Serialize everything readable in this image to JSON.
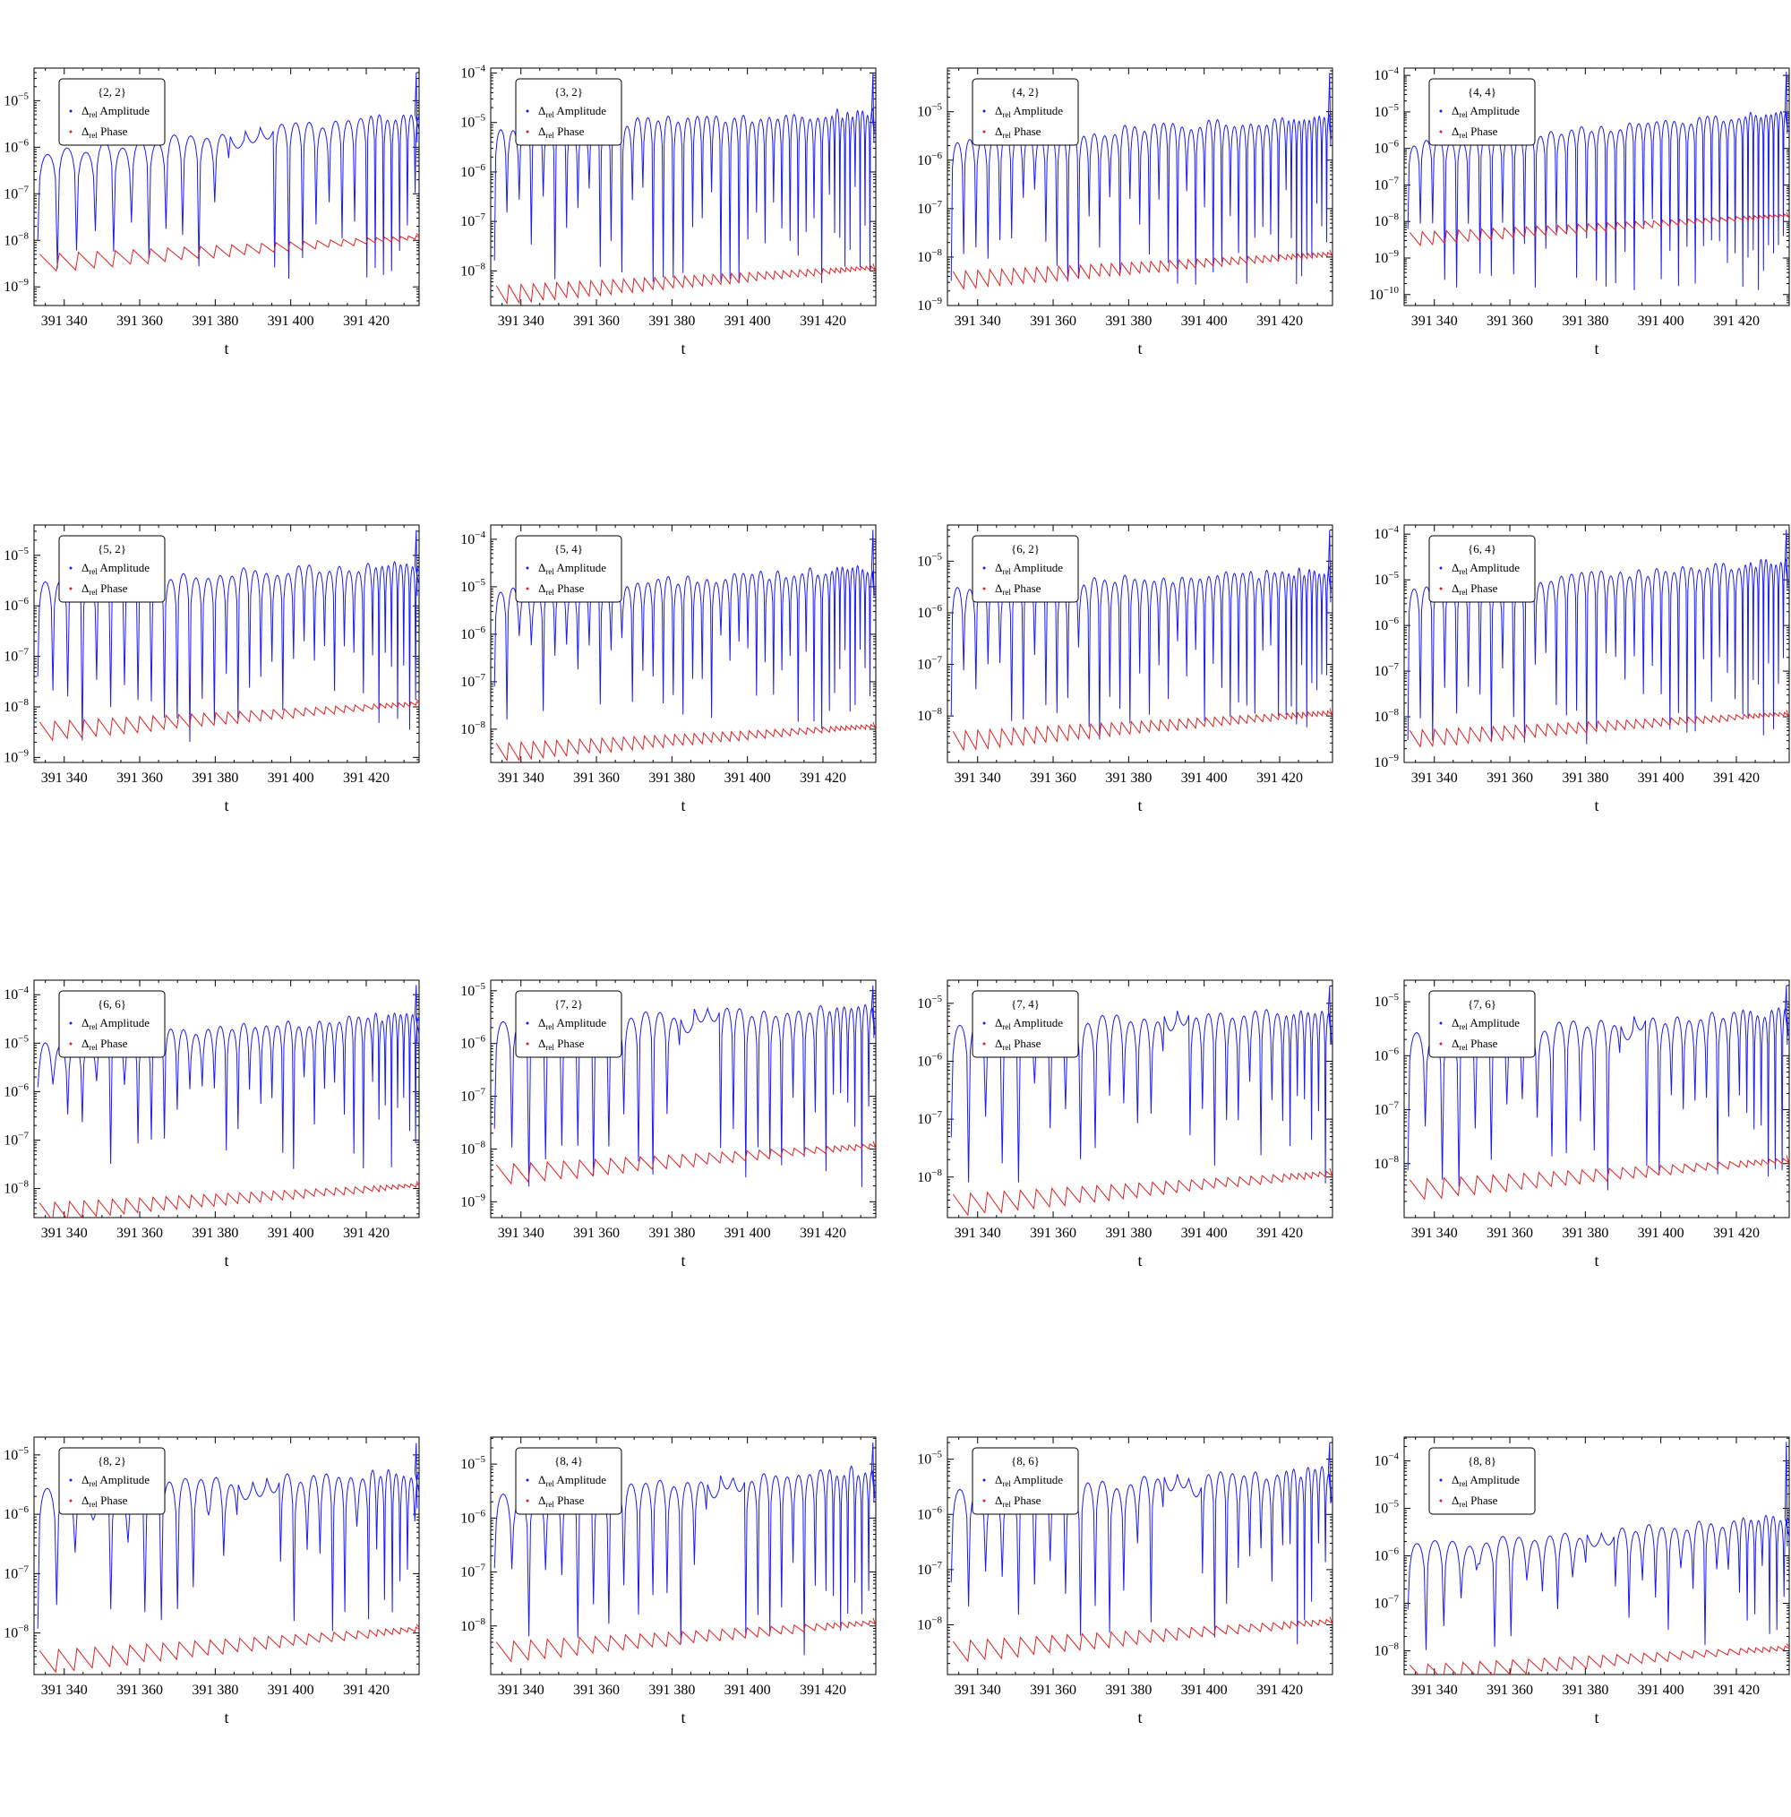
{
  "colors": {
    "amplitude": "#1a1aff",
    "phase": "#e02020",
    "axes": "#000000"
  },
  "shared": {
    "xlabel": "t",
    "x_ticks": [
      391340,
      391360,
      391380,
      391400,
      391420
    ],
    "x_tick_labels": [
      "391 340",
      "391 360",
      "391 380",
      "391 400",
      "391 420"
    ],
    "xlim": [
      391332,
      391434
    ],
    "y_scale": "log",
    "legend_position": "top-left",
    "legend_entries": [
      {
        "symbol": "Δ",
        "sub": "rel",
        "label": " Amplitude",
        "series": "amplitude"
      },
      {
        "symbol": "Δ",
        "sub": "rel",
        "label": " Phase",
        "series": "phase"
      }
    ]
  },
  "chart_data": [
    {
      "type": "line",
      "title": "{2, 2}",
      "ylim_exp": [
        -9.4,
        -4.3
      ],
      "y_tick_exps": [
        -9,
        -8,
        -7,
        -6,
        -5
      ],
      "y_tick_labels": [
        "10^-9",
        "10^-8",
        "10^-7",
        "10^-6",
        "10^-5"
      ],
      "amp_peak_start_exp": -6.1,
      "amp_peak_end_exp": -5.3,
      "amp_spike_exp": -4.4,
      "phase_start_exp": -8.3,
      "phase_end_exp": -7.9,
      "dip_floor_exp": -9.2,
      "gap_range": [
        391380,
        391393
      ],
      "period": 5.2,
      "series": [
        {
          "name": "Δrel Amplitude",
          "key": "amplitude"
        },
        {
          "name": "Δrel Phase",
          "key": "phase"
        }
      ]
    },
    {
      "type": "line",
      "title": "{3, 2}",
      "ylim_exp": [
        -8.7,
        -3.9
      ],
      "y_tick_exps": [
        -8,
        -7,
        -6,
        -5,
        -4
      ],
      "y_tick_labels": [
        "10^-8",
        "10^-7",
        "10^-6",
        "10^-5",
        "10^-4"
      ],
      "amp_peak_start_exp": -5.1,
      "amp_peak_end_exp": -4.8,
      "amp_spike_exp": -4.0,
      "phase_start_exp": -8.3,
      "phase_end_exp": -7.9,
      "dip_floor_exp": -8.6,
      "gap_range": null,
      "period": 3.3,
      "series": [
        {
          "name": "Δrel Amplitude",
          "key": "amplitude"
        },
        {
          "name": "Δrel Phase",
          "key": "phase"
        }
      ]
    },
    {
      "type": "line",
      "title": "{4, 2}",
      "ylim_exp": [
        -9.0,
        -4.1
      ],
      "y_tick_exps": [
        -9,
        -8,
        -7,
        -6,
        -5
      ],
      "y_tick_labels": [
        "10^-9",
        "10^-8",
        "10^-7",
        "10^-6",
        "10^-5"
      ],
      "amp_peak_start_exp": -5.6,
      "amp_peak_end_exp": -5.1,
      "amp_spike_exp": -4.2,
      "phase_start_exp": -8.3,
      "phase_end_exp": -7.9,
      "dip_floor_exp": -8.9,
      "gap_range": null,
      "period": 3.3,
      "series": [
        {
          "name": "Δrel Amplitude",
          "key": "amplitude"
        },
        {
          "name": "Δrel Phase",
          "key": "phase"
        }
      ]
    },
    {
      "type": "line",
      "title": "{4, 4}",
      "ylim_exp": [
        -10.3,
        -3.8
      ],
      "y_tick_exps": [
        -10,
        -9,
        -8,
        -7,
        -6,
        -5,
        -4
      ],
      "y_tick_labels": [
        "10^-10",
        "10^-9",
        "10^-8",
        "10^-7",
        "10^-6",
        "10^-5",
        "10^-4"
      ],
      "amp_peak_start_exp": -5.9,
      "amp_peak_end_exp": -5.0,
      "amp_spike_exp": -3.9,
      "phase_start_exp": -8.3,
      "phase_end_exp": -7.8,
      "dip_floor_exp": -10.2,
      "gap_range": null,
      "period": 3.3,
      "series": [
        {
          "name": "Δrel Amplitude",
          "key": "amplitude"
        },
        {
          "name": "Δrel Phase",
          "key": "phase"
        }
      ]
    },
    {
      "type": "line",
      "title": "{5, 2}",
      "ylim_exp": [
        -9.1,
        -4.4
      ],
      "y_tick_exps": [
        -9,
        -8,
        -7,
        -6,
        -5
      ],
      "y_tick_labels": [
        "10^-9",
        "10^-8",
        "10^-7",
        "10^-6",
        "10^-5"
      ],
      "amp_peak_start_exp": -5.5,
      "amp_peak_end_exp": -5.2,
      "amp_spike_exp": -4.5,
      "phase_start_exp": -8.3,
      "phase_end_exp": -7.9,
      "dip_floor_exp": -9.0,
      "gap_range": null,
      "period": 4.0,
      "series": [
        {
          "name": "Δrel Amplitude",
          "key": "amplitude"
        },
        {
          "name": "Δrel Phase",
          "key": "phase"
        }
      ]
    },
    {
      "type": "line",
      "title": "{5, 4}",
      "ylim_exp": [
        -8.7,
        -3.7
      ],
      "y_tick_exps": [
        -8,
        -7,
        -6,
        -5,
        -4
      ],
      "y_tick_labels": [
        "10^-8",
        "10^-7",
        "10^-6",
        "10^-5",
        "10^-4"
      ],
      "amp_peak_start_exp": -5.1,
      "amp_peak_end_exp": -4.6,
      "amp_spike_exp": -3.8,
      "phase_start_exp": -8.3,
      "phase_end_exp": -7.9,
      "dip_floor_exp": -8.3,
      "gap_range": null,
      "period": 3.3,
      "series": [
        {
          "name": "Δrel Amplitude",
          "key": "amplitude"
        },
        {
          "name": "Δrel Phase",
          "key": "phase"
        }
      ]
    },
    {
      "type": "line",
      "title": "{6, 2}",
      "ylim_exp": [
        -8.9,
        -4.3
      ],
      "y_tick_exps": [
        -8,
        -7,
        -6,
        -5
      ],
      "y_tick_labels": [
        "10^-8",
        "10^-7",
        "10^-6",
        "10^-5"
      ],
      "amp_peak_start_exp": -5.5,
      "amp_peak_end_exp": -5.2,
      "amp_spike_exp": -4.4,
      "phase_start_exp": -8.3,
      "phase_end_exp": -7.9,
      "dip_floor_exp": -8.8,
      "gap_range": null,
      "period": 3.3,
      "series": [
        {
          "name": "Δrel Amplitude",
          "key": "amplitude"
        },
        {
          "name": "Δrel Phase",
          "key": "phase"
        }
      ]
    },
    {
      "type": "line",
      "title": "{6, 4}",
      "ylim_exp": [
        -9.0,
        -3.8
      ],
      "y_tick_exps": [
        -9,
        -8,
        -7,
        -6,
        -5,
        -4
      ],
      "y_tick_labels": [
        "10^-9",
        "10^-8",
        "10^-7",
        "10^-6",
        "10^-5",
        "10^-4"
      ],
      "amp_peak_start_exp": -5.2,
      "amp_peak_end_exp": -4.6,
      "amp_spike_exp": -3.9,
      "phase_start_exp": -8.3,
      "phase_end_exp": -7.9,
      "dip_floor_exp": -8.9,
      "gap_range": null,
      "period": 3.3,
      "series": [
        {
          "name": "Δrel Amplitude",
          "key": "amplitude"
        },
        {
          "name": "Δrel Phase",
          "key": "phase"
        }
      ]
    },
    {
      "type": "line",
      "title": "{6, 6}",
      "ylim_exp": [
        -8.6,
        -3.7
      ],
      "y_tick_exps": [
        -8,
        -7,
        -6,
        -5,
        -4
      ],
      "y_tick_labels": [
        "10^-8",
        "10^-7",
        "10^-6",
        "10^-5",
        "10^-4"
      ],
      "amp_peak_start_exp": -5.0,
      "amp_peak_end_exp": -4.4,
      "amp_spike_exp": -3.8,
      "phase_start_exp": -8.3,
      "phase_end_exp": -7.9,
      "dip_floor_exp": -7.9,
      "gap_range": null,
      "period": 4.0,
      "series": [
        {
          "name": "Δrel Amplitude",
          "key": "amplitude"
        },
        {
          "name": "Δrel Phase",
          "key": "phase"
        }
      ]
    },
    {
      "type": "line",
      "title": "{7, 2}",
      "ylim_exp": [
        -9.3,
        -4.8
      ],
      "y_tick_exps": [
        -9,
        -8,
        -7,
        -6,
        -5
      ],
      "y_tick_labels": [
        "10^-9",
        "10^-8",
        "10^-7",
        "10^-6",
        "10^-5"
      ],
      "amp_peak_start_exp": -5.6,
      "amp_peak_end_exp": -5.3,
      "amp_spike_exp": -4.9,
      "phase_start_exp": -8.3,
      "phase_end_exp": -7.9,
      "dip_floor_exp": -9.2,
      "gap_range": [
        391381,
        391392
      ],
      "period": 4.6,
      "series": [
        {
          "name": "Δrel Amplitude",
          "key": "amplitude"
        },
        {
          "name": "Δrel Phase",
          "key": "phase"
        }
      ]
    },
    {
      "type": "line",
      "title": "{7, 4}",
      "ylim_exp": [
        -8.7,
        -4.6
      ],
      "y_tick_exps": [
        -8,
        -7,
        -6,
        -5
      ],
      "y_tick_labels": [
        "10^-8",
        "10^-7",
        "10^-6",
        "10^-5"
      ],
      "amp_peak_start_exp": -5.4,
      "amp_peak_end_exp": -5.1,
      "amp_spike_exp": -4.7,
      "phase_start_exp": -8.3,
      "phase_end_exp": -7.9,
      "dip_floor_exp": -8.5,
      "gap_range": [
        391386,
        391396
      ],
      "period": 4.6,
      "series": [
        {
          "name": "Δrel Amplitude",
          "key": "amplitude"
        },
        {
          "name": "Δrel Phase",
          "key": "phase"
        }
      ]
    },
    {
      "type": "line",
      "title": "{7, 6}",
      "ylim_exp": [
        -9.0,
        -4.6
      ],
      "y_tick_exps": [
        -8,
        -7,
        -6,
        -5
      ],
      "y_tick_labels": [
        "10^-8",
        "10^-7",
        "10^-6",
        "10^-5"
      ],
      "amp_peak_start_exp": -5.6,
      "amp_peak_end_exp": -5.2,
      "amp_spike_exp": -4.7,
      "phase_start_exp": -8.3,
      "phase_end_exp": -7.9,
      "dip_floor_exp": -8.9,
      "gap_range": [
        391386,
        391396
      ],
      "period": 4.6,
      "series": [
        {
          "name": "Δrel Amplitude",
          "key": "amplitude"
        },
        {
          "name": "Δrel Phase",
          "key": "phase"
        }
      ]
    },
    {
      "type": "line",
      "title": "{8, 2}",
      "ylim_exp": [
        -8.7,
        -4.7
      ],
      "y_tick_exps": [
        -8,
        -7,
        -6,
        -5
      ],
      "y_tick_labels": [
        "10^-8",
        "10^-7",
        "10^-6",
        "10^-5"
      ],
      "amp_peak_start_exp": -5.6,
      "amp_peak_end_exp": -5.3,
      "amp_spike_exp": -4.8,
      "phase_start_exp": -8.3,
      "phase_end_exp": -7.9,
      "dip_floor_exp": -8.3,
      "gap_range": [
        391386,
        391397
      ],
      "period": 5.0,
      "series": [
        {
          "name": "Δrel Amplitude",
          "key": "amplitude"
        },
        {
          "name": "Δrel Phase",
          "key": "phase"
        }
      ]
    },
    {
      "type": "line",
      "title": "{8, 4}",
      "ylim_exp": [
        -8.9,
        -4.5
      ],
      "y_tick_exps": [
        -8,
        -7,
        -6,
        -5
      ],
      "y_tick_labels": [
        "10^-8",
        "10^-7",
        "10^-6",
        "10^-5"
      ],
      "amp_peak_start_exp": -5.6,
      "amp_peak_end_exp": -5.1,
      "amp_spike_exp": -4.6,
      "phase_start_exp": -8.3,
      "phase_end_exp": -7.9,
      "dip_floor_exp": -8.9,
      "gap_range": [
        391386,
        391398
      ],
      "period": 4.6,
      "series": [
        {
          "name": "Δrel Amplitude",
          "key": "amplitude"
        },
        {
          "name": "Δrel Phase",
          "key": "phase"
        }
      ]
    },
    {
      "type": "line",
      "title": "{8, 6}",
      "ylim_exp": [
        -8.9,
        -4.6
      ],
      "y_tick_exps": [
        -8,
        -7,
        -6,
        -5
      ],
      "y_tick_labels": [
        "10^-8",
        "10^-7",
        "10^-6",
        "10^-5"
      ],
      "amp_peak_start_exp": -5.6,
      "amp_peak_end_exp": -5.2,
      "amp_spike_exp": -4.7,
      "phase_start_exp": -8.3,
      "phase_end_exp": -7.9,
      "dip_floor_exp": -8.8,
      "gap_range": [
        391388,
        391398
      ],
      "period": 4.6,
      "series": [
        {
          "name": "Δrel Amplitude",
          "key": "amplitude"
        },
        {
          "name": "Δrel Phase",
          "key": "phase"
        }
      ]
    },
    {
      "type": "line",
      "title": "{8, 8}",
      "ylim_exp": [
        -8.5,
        -3.5
      ],
      "y_tick_exps": [
        -8,
        -7,
        -6,
        -5,
        -4
      ],
      "y_tick_labels": [
        "10^-8",
        "10^-7",
        "10^-6",
        "10^-5",
        "10^-4"
      ],
      "amp_peak_start_exp": -5.8,
      "amp_peak_end_exp": -5.2,
      "amp_spike_exp": -3.6,
      "phase_start_exp": -8.3,
      "phase_end_exp": -7.9,
      "dip_floor_exp": -8.3,
      "gap_range": [
        391377,
        391386
      ],
      "period": 4.8,
      "series": [
        {
          "name": "Δrel Amplitude",
          "key": "amplitude"
        },
        {
          "name": "Δrel Phase",
          "key": "phase"
        }
      ]
    }
  ]
}
